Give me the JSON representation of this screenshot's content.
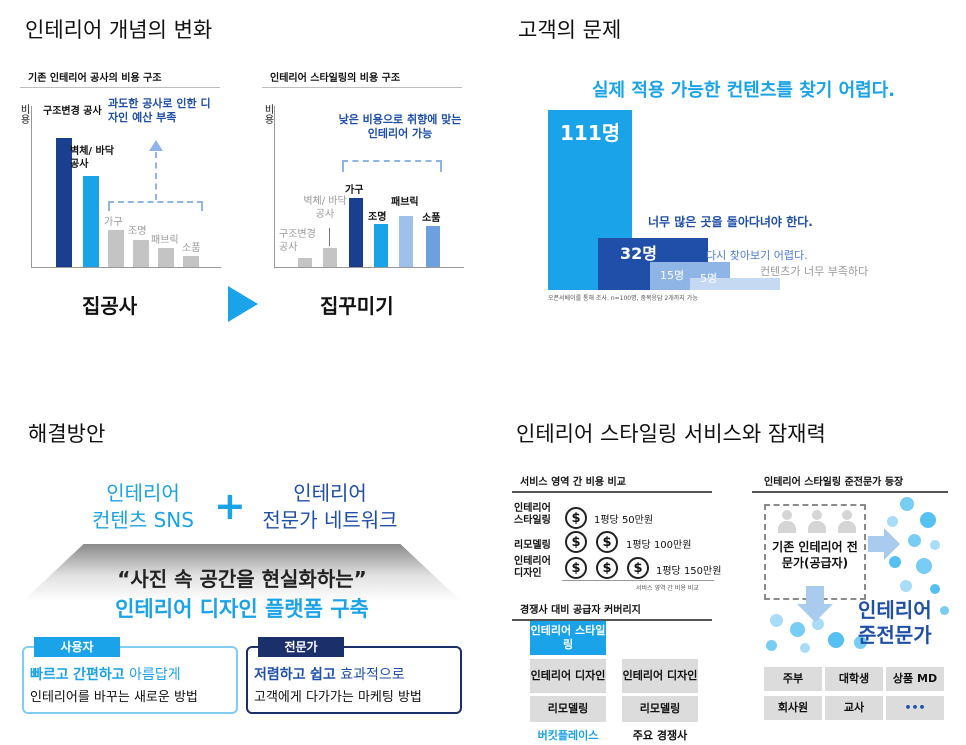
{
  "q1": {
    "title": "인테리어 개념의 변화",
    "left": {
      "subtitle": "기존 인테리어 공사의 비용 구조",
      "axis": "비용",
      "bars": [
        "구조변경 공사",
        "벽체/ 바닥공사",
        "가구",
        "조명",
        "패브릭",
        "소품"
      ],
      "callout": "과도한 공사로 인한 디자인 예산 부족",
      "label": "집공사"
    },
    "right": {
      "subtitle": "인테리어 스타일링의 비용 구조",
      "axis": "비용",
      "bars": [
        "구조변경 공사",
        "벽체/ 바닥공사",
        "가구",
        "조명",
        "패브릭",
        "소품"
      ],
      "callout": "낮은 비용으로 취향에 맞는 인테리어 가능",
      "label": "집꾸미기"
    }
  },
  "q2": {
    "title": "고객의 문제",
    "headline": "실제 적용 가능한 컨텐츠를 찾기 어렵다.",
    "bars": [
      {
        "value": "111명",
        "label": ""
      },
      {
        "value": "32명",
        "label": "너무 많은 곳을 돌아다녀야 한다."
      },
      {
        "value": "15명",
        "label": "다시 찾아보기 어렵다."
      },
      {
        "value": "5명",
        "label": "컨텐츠가 너무 부족하다"
      }
    ],
    "footnote": "오픈서베이를 통해 조사. n=100명, 중복응답 2개까지 가능"
  },
  "q3": {
    "title": "해결방안",
    "left_line1": "인테리어",
    "left_line2": "컨텐츠 SNS",
    "plus": "+",
    "right_line1": "인테리어",
    "right_line2": "전문가 네트워크",
    "quote": "“사진 속 공간을 현실화하는”",
    "platform": "인테리어 디자인 플랫폼 구축",
    "user_tag": "사용자",
    "user_line1_a": "빠르고",
    "user_line1_b": "간편하고",
    "user_line1_c": "아름답게",
    "user_line2": "인테리어를 바꾸는 새로운 방법",
    "pro_tag": "전문가",
    "pro_line1_a": "저렴하고",
    "pro_line1_b": "쉽고",
    "pro_line1_c": "효과적으로",
    "pro_line2": "고객에게 다가가는 마케팅 방법"
  },
  "q4": {
    "title": "인테리어 스타일링 서비스와 잠재력",
    "cost_title": "서비스 영역 간 비용 비교",
    "rows": [
      {
        "name": "인테리어 스타일링",
        "price": "1평당 50만원"
      },
      {
        "name": "리모델링",
        "price": "1평당 100만원"
      },
      {
        "name": "인테리어 디자인",
        "price": "1평당 150만원"
      }
    ],
    "coin": "$",
    "cost_note": "서비스 영역 간 비용 비교",
    "coverage_title": "경쟁사 대비 공급자 커버리지",
    "left_cells": [
      "인테리어 스타일링",
      "인테리어 디자인",
      "리모델링"
    ],
    "right_cells": [
      "인테리어 디자인",
      "리모델링"
    ],
    "left_caption": "버킷플레이스",
    "right_caption": "주요 경쟁사",
    "pro_title": "인테리어 스타일링 준전문가 등장",
    "old_group": "기존 인테리어 전문가(공급자)",
    "new_group_1": "인테리어",
    "new_group_2": "준전문가",
    "roles": [
      "주부",
      "대학생",
      "상품 MD",
      "회사원",
      "교사",
      "•••"
    ]
  }
}
